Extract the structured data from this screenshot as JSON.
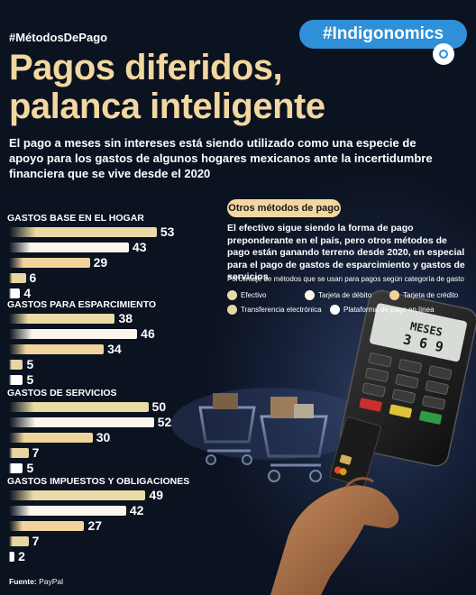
{
  "header": {
    "hashtag": "#MétodosDePago",
    "brand": "#Indigonomics",
    "title_line1": "Pagos diferidos,",
    "title_line2": "palanca inteligente",
    "subtitle": "El pago a meses sin intereses está siendo utilizado como una especie de apoyo para los gastos de algunos hogares mexicanos ante la incertidumbre financiera que se vive desde el 2020"
  },
  "aside": {
    "pill": "Otros métodos de pago",
    "description": "El efectivo sigue siendo la forma de pago preponderante en el país, pero otros métodos de pago están ganando terreno desde 2020, en especial para el pago de gastos de esparcimiento y gastos de servicios",
    "legend_caption": "Porcentaje de métodos que se usan para pagos según categoría de gasto"
  },
  "illustration": {
    "terminal_screen_title": "MESES",
    "terminal_screen_value": "3 6 9"
  },
  "footer": {
    "source_label": "Fuente:",
    "source_value": "PayPal"
  },
  "colors": {
    "Efectivo": "#eadba6",
    "Tarjeta de débito": "#faf6ec",
    "Tarjeta de crédito": "#f1d49c",
    "Transferencia electrónica": "#e7d6a2",
    "Plataforma de pago en línea": "#ffffff"
  },
  "chart_data": {
    "type": "bar",
    "orientation": "horizontal",
    "unit": "%",
    "categories": [
      "GASTOS BASE EN EL HOGAR",
      "GASTOS PARA ESPARCIMIENTO",
      "GASTOS DE SERVICIOS",
      "GASTOS IMPUESTOS Y OBLIGACIONES"
    ],
    "series": [
      {
        "name": "Efectivo",
        "values": [
          53,
          38,
          50,
          49
        ]
      },
      {
        "name": "Tarjeta de débito",
        "values": [
          43,
          46,
          52,
          42
        ]
      },
      {
        "name": "Tarjeta de crédito",
        "values": [
          29,
          34,
          30,
          27
        ]
      },
      {
        "name": "Transferencia electrónica",
        "values": [
          6,
          5,
          7,
          7
        ]
      },
      {
        "name": "Plataforma de pago en línea",
        "values": [
          4,
          5,
          5,
          2
        ]
      }
    ],
    "xlim": [
      0,
      55
    ],
    "grid": false,
    "legend": "right"
  }
}
